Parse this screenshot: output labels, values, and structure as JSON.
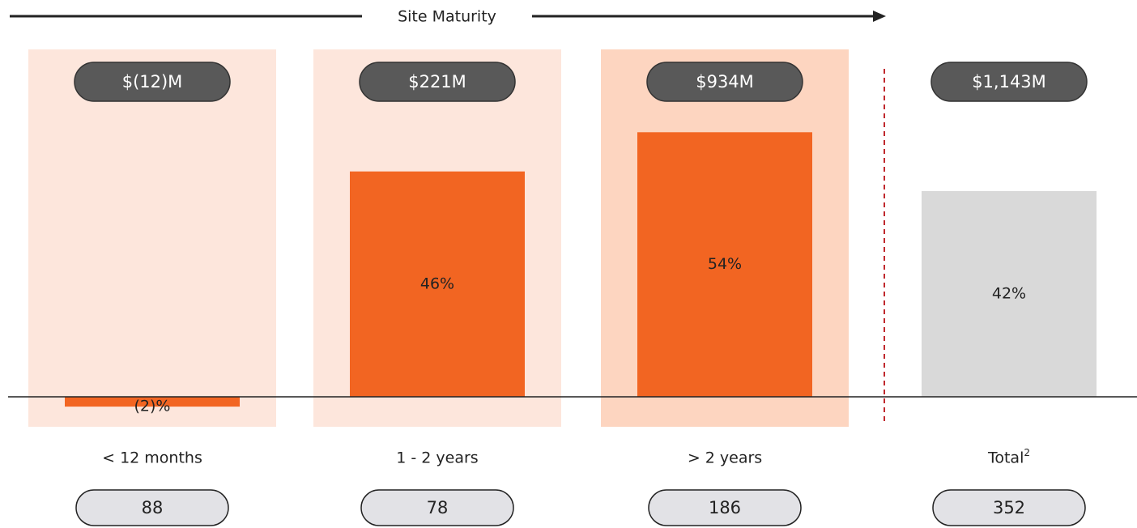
{
  "chart_data": {
    "type": "bar",
    "header": "Site Maturity",
    "categories": [
      "< 12 months",
      "1 - 2 years",
      "> 2 years",
      "Total"
    ],
    "total_footnote": "2",
    "values": [
      -2,
      46,
      54,
      42
    ],
    "value_labels": [
      "(2)%",
      "46%",
      "54%",
      "42%"
    ],
    "colors": [
      "#f26522",
      "#f26522",
      "#f26522",
      "#d9d9d9"
    ],
    "panel_colors": [
      "#fde6dc",
      "#fde6dc",
      "#fdd5c0"
    ],
    "revenue": {
      "values": [
        -12,
        221,
        934,
        1143
      ],
      "value_labels": [
        "$(12)M",
        "$221M",
        "$934M",
        "$1,143M"
      ]
    },
    "sites": [
      88,
      78,
      186,
      352
    ]
  }
}
